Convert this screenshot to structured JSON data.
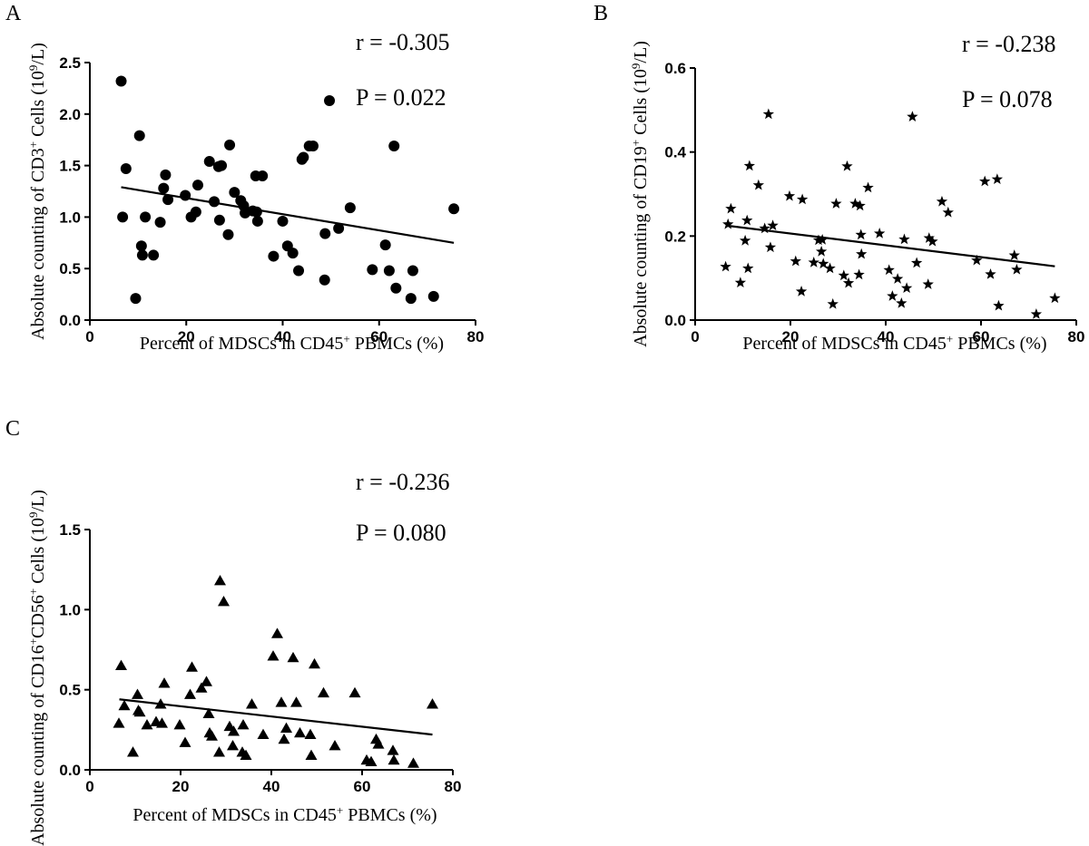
{
  "chart_data": [
    {
      "id": "A",
      "type": "scatter",
      "panel_label": "A",
      "marker": "circle",
      "xlabel": "Percent of MDSCs in CD45",
      "xlabel_sup": "+",
      "xlabel_tail": " PBMCs (%)",
      "ylabel_pre": "Absolute counting of CD3",
      "ylabel_sup1": "+",
      "ylabel_mid": " Cells (10",
      "ylabel_sup2": "9",
      "ylabel_post": "/L)",
      "r_text": "r = -0.305",
      "p_text": "P = 0.022",
      "xlim": [
        0,
        80
      ],
      "ylim": [
        0,
        2.5
      ],
      "xticks": [
        0,
        20,
        40,
        60,
        80
      ],
      "yticks": [
        0.0,
        0.5,
        1.0,
        1.5,
        2.0,
        2.5
      ],
      "ytick_labels": [
        "0.0",
        "0.5",
        "1.0",
        "1.5",
        "2.0",
        "2.5"
      ],
      "trend": {
        "x": [
          6.5,
          75.5
        ],
        "y": [
          1.29,
          0.75
        ]
      },
      "points": [
        [
          6.5,
          2.32
        ],
        [
          6.8,
          1.0
        ],
        [
          7.5,
          1.47
        ],
        [
          9.5,
          0.21
        ],
        [
          10.3,
          1.79
        ],
        [
          10.7,
          0.72
        ],
        [
          10.9,
          0.63
        ],
        [
          11.5,
          1.0
        ],
        [
          13.2,
          0.63
        ],
        [
          14.6,
          0.95
        ],
        [
          15.3,
          1.28
        ],
        [
          15.7,
          1.41
        ],
        [
          16.2,
          1.17
        ],
        [
          19.8,
          1.21
        ],
        [
          21.0,
          1.0
        ],
        [
          22.0,
          1.05
        ],
        [
          22.4,
          1.31
        ],
        [
          24.8,
          1.54
        ],
        [
          25.8,
          1.15
        ],
        [
          26.7,
          1.49
        ],
        [
          26.9,
          0.97
        ],
        [
          27.3,
          1.5
        ],
        [
          28.7,
          0.83
        ],
        [
          29.0,
          1.7
        ],
        [
          30.0,
          1.24
        ],
        [
          31.3,
          1.16
        ],
        [
          31.9,
          1.11
        ],
        [
          32.2,
          1.04
        ],
        [
          33.8,
          1.06
        ],
        [
          34.4,
          1.4
        ],
        [
          34.6,
          1.05
        ],
        [
          34.8,
          0.96
        ],
        [
          35.8,
          1.4
        ],
        [
          38.1,
          0.62
        ],
        [
          40.0,
          0.96
        ],
        [
          41.0,
          0.72
        ],
        [
          42.1,
          0.65
        ],
        [
          43.3,
          0.48
        ],
        [
          44.0,
          1.56
        ],
        [
          44.3,
          1.58
        ],
        [
          45.5,
          1.69
        ],
        [
          46.3,
          1.69
        ],
        [
          48.7,
          0.39
        ],
        [
          48.8,
          0.84
        ],
        [
          49.7,
          2.13
        ],
        [
          51.6,
          0.89
        ],
        [
          54.0,
          1.09
        ],
        [
          58.6,
          0.49
        ],
        [
          61.3,
          0.73
        ],
        [
          62.1,
          0.48
        ],
        [
          63.1,
          1.69
        ],
        [
          63.5,
          0.31
        ],
        [
          66.6,
          0.21
        ],
        [
          67.0,
          0.48
        ],
        [
          71.3,
          0.23
        ],
        [
          75.5,
          1.08
        ]
      ]
    },
    {
      "id": "B",
      "type": "scatter",
      "panel_label": "B",
      "marker": "star",
      "xlabel": "Percent of MDSCs in CD45",
      "xlabel_sup": "+",
      "xlabel_tail": " PBMCs (%)",
      "ylabel_pre": "Absolute counting of CD19",
      "ylabel_sup1": "+",
      "ylabel_mid": " Cells (10",
      "ylabel_sup2": "9",
      "ylabel_post": "/L)",
      "r_text": "r = -0.238",
      "p_text": "P = 0.078",
      "xlim": [
        0,
        80
      ],
      "ylim": [
        0,
        0.6
      ],
      "xticks": [
        0,
        20,
        40,
        60,
        80
      ],
      "yticks": [
        0.0,
        0.2,
        0.4,
        0.6
      ],
      "ytick_labels": [
        "0.0",
        "0.2",
        "0.4",
        "0.6"
      ],
      "trend": {
        "x": [
          6.5,
          75.5
        ],
        "y": [
          0.225,
          0.128
        ]
      },
      "points": [
        [
          6.4,
          0.127
        ],
        [
          6.9,
          0.228
        ],
        [
          7.5,
          0.265
        ],
        [
          9.5,
          0.089
        ],
        [
          10.5,
          0.189
        ],
        [
          10.9,
          0.237
        ],
        [
          11.1,
          0.123
        ],
        [
          11.4,
          0.367
        ],
        [
          13.3,
          0.321
        ],
        [
          14.6,
          0.218
        ],
        [
          15.4,
          0.49
        ],
        [
          15.8,
          0.173
        ],
        [
          16.3,
          0.225
        ],
        [
          19.8,
          0.295
        ],
        [
          21.1,
          0.14
        ],
        [
          22.3,
          0.068
        ],
        [
          22.5,
          0.287
        ],
        [
          24.9,
          0.137
        ],
        [
          25.9,
          0.19
        ],
        [
          26.5,
          0.163
        ],
        [
          26.7,
          0.191
        ],
        [
          26.9,
          0.134
        ],
        [
          28.3,
          0.123
        ],
        [
          28.9,
          0.038
        ],
        [
          29.6,
          0.277
        ],
        [
          31.2,
          0.106
        ],
        [
          31.9,
          0.366
        ],
        [
          32.2,
          0.088
        ],
        [
          33.6,
          0.277
        ],
        [
          34.4,
          0.108
        ],
        [
          34.6,
          0.272
        ],
        [
          34.8,
          0.203
        ],
        [
          34.9,
          0.157
        ],
        [
          36.3,
          0.315
        ],
        [
          38.7,
          0.206
        ],
        [
          40.7,
          0.119
        ],
        [
          41.4,
          0.057
        ],
        [
          42.5,
          0.098
        ],
        [
          43.3,
          0.04
        ],
        [
          43.9,
          0.192
        ],
        [
          44.4,
          0.076
        ],
        [
          45.6,
          0.484
        ],
        [
          46.5,
          0.136
        ],
        [
          48.9,
          0.085
        ],
        [
          49.1,
          0.195
        ],
        [
          49.8,
          0.187
        ],
        [
          51.8,
          0.282
        ],
        [
          53.1,
          0.256
        ],
        [
          59.1,
          0.142
        ],
        [
          60.8,
          0.33
        ],
        [
          62.0,
          0.109
        ],
        [
          63.4,
          0.335
        ],
        [
          63.7,
          0.034
        ],
        [
          67.0,
          0.154
        ],
        [
          67.5,
          0.12
        ],
        [
          71.6,
          0.014
        ],
        [
          75.5,
          0.052
        ]
      ]
    },
    {
      "id": "C",
      "type": "scatter",
      "panel_label": "C",
      "marker": "triangle",
      "xlabel": "Percent of MDSCs in CD45",
      "xlabel_sup": "+",
      "xlabel_tail": " PBMCs (%)",
      "ylabel_pre": "Absolute counting of CD16",
      "ylabel_sup1": "+",
      "ylabel_mid": "CD56",
      "ylabel_sup3": "+",
      "ylabel_mid2": " Cells (10",
      "ylabel_sup2": "9",
      "ylabel_post": "/L)",
      "r_text": "r = -0.236",
      "p_text": "P = 0.080",
      "xlim": [
        0,
        80
      ],
      "ylim": [
        0,
        1.5
      ],
      "xticks": [
        0,
        20,
        40,
        60,
        80
      ],
      "yticks": [
        0.0,
        0.5,
        1.0,
        1.5
      ],
      "ytick_labels": [
        "0.0",
        "0.5",
        "1.0",
        "1.5"
      ],
      "trend": {
        "x": [
          6.5,
          75.5
        ],
        "y": [
          0.44,
          0.22
        ]
      },
      "points": [
        [
          6.4,
          0.29
        ],
        [
          6.9,
          0.65
        ],
        [
          7.6,
          0.4
        ],
        [
          9.5,
          0.11
        ],
        [
          10.5,
          0.47
        ],
        [
          10.7,
          0.37
        ],
        [
          11.0,
          0.36
        ],
        [
          12.6,
          0.28
        ],
        [
          14.6,
          0.3
        ],
        [
          15.6,
          0.41
        ],
        [
          15.9,
          0.29
        ],
        [
          16.4,
          0.54
        ],
        [
          19.8,
          0.28
        ],
        [
          21.0,
          0.17
        ],
        [
          22.1,
          0.47
        ],
        [
          22.5,
          0.64
        ],
        [
          24.6,
          0.51
        ],
        [
          25.7,
          0.55
        ],
        [
          26.2,
          0.35
        ],
        [
          26.4,
          0.23
        ],
        [
          26.9,
          0.21
        ],
        [
          28.5,
          0.11
        ],
        [
          28.7,
          1.18
        ],
        [
          29.5,
          1.05
        ],
        [
          30.8,
          0.27
        ],
        [
          31.5,
          0.15
        ],
        [
          31.7,
          0.24
        ],
        [
          33.6,
          0.11
        ],
        [
          33.8,
          0.28
        ],
        [
          34.4,
          0.09
        ],
        [
          35.7,
          0.41
        ],
        [
          38.2,
          0.22
        ],
        [
          40.4,
          0.71
        ],
        [
          41.3,
          0.85
        ],
        [
          42.2,
          0.42
        ],
        [
          42.8,
          0.19
        ],
        [
          43.3,
          0.26
        ],
        [
          44.8,
          0.7
        ],
        [
          45.5,
          0.42
        ],
        [
          46.3,
          0.23
        ],
        [
          48.6,
          0.22
        ],
        [
          48.8,
          0.09
        ],
        [
          49.5,
          0.66
        ],
        [
          51.5,
          0.48
        ],
        [
          54.0,
          0.15
        ],
        [
          58.4,
          0.48
        ],
        [
          61.0,
          0.06
        ],
        [
          62.0,
          0.05
        ],
        [
          63.1,
          0.19
        ],
        [
          63.6,
          0.16
        ],
        [
          66.8,
          0.12
        ],
        [
          67.0,
          0.06
        ],
        [
          71.3,
          0.04
        ],
        [
          75.5,
          0.41
        ]
      ]
    }
  ]
}
